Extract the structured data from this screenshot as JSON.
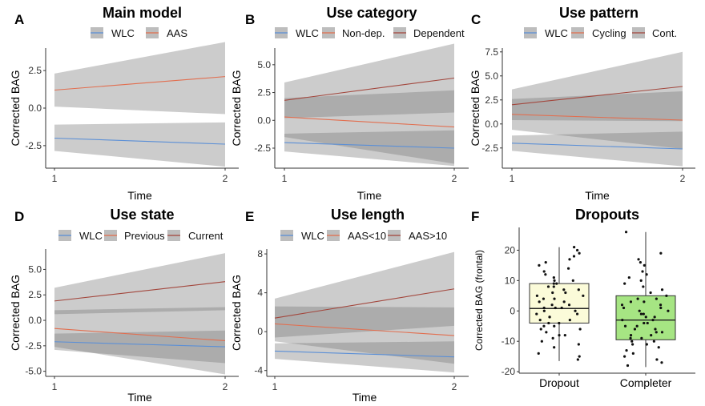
{
  "chart_data": [
    {
      "panel": "A",
      "type": "line",
      "title": "Main model",
      "xlabel": "Time",
      "ylabel": "Corrected BAG",
      "x": [
        1,
        2
      ],
      "xticks": [
        "1",
        "2"
      ],
      "yticks": [
        -2.5,
        0.0,
        2.5
      ],
      "ytick_labels": [
        "-2.5",
        "0.0",
        "2.5"
      ],
      "ylim": [
        -4.0,
        4.0
      ],
      "series": [
        {
          "name": "WLC",
          "color": "#5b8fd6",
          "values": [
            -2.0,
            -2.4
          ],
          "lower": [
            -2.85,
            -3.9
          ],
          "upper": [
            -1.1,
            -0.95
          ]
        },
        {
          "name": "AAS",
          "color": "#e26e4f",
          "values": [
            1.2,
            2.1
          ],
          "lower": [
            0.1,
            -0.4
          ],
          "upper": [
            2.3,
            4.4
          ]
        }
      ]
    },
    {
      "panel": "B",
      "type": "line",
      "title": "Use category",
      "xlabel": "Time",
      "ylabel": "Corrected BAG",
      "x": [
        1,
        2
      ],
      "xticks": [
        "1",
        "2"
      ],
      "yticks": [
        -2.5,
        0.0,
        2.5,
        5.0
      ],
      "ytick_labels": [
        "-2.5",
        "0.0",
        "2.5",
        "5.0"
      ],
      "ylim": [
        -4.3,
        6.5
      ],
      "series": [
        {
          "name": "WLC",
          "color": "#5b8fd6",
          "values": [
            -2.0,
            -2.5
          ],
          "lower": [
            -2.8,
            -4.1
          ],
          "upper": [
            -1.2,
            -0.9
          ]
        },
        {
          "name": "Non-dep.",
          "color": "#e26e4f",
          "values": [
            0.3,
            -0.6
          ],
          "lower": [
            -1.5,
            -3.9
          ],
          "upper": [
            2.0,
            2.7
          ]
        },
        {
          "name": "Dependent",
          "color": "#a3473d",
          "values": [
            1.8,
            3.8
          ],
          "lower": [
            0.2,
            0.7
          ],
          "upper": [
            3.4,
            6.9
          ]
        }
      ]
    },
    {
      "panel": "C",
      "type": "line",
      "title": "Use pattern",
      "xlabel": "Time",
      "ylabel": "Corrected BAG",
      "x": [
        1,
        2
      ],
      "xticks": [
        "1",
        "2"
      ],
      "yticks": [
        -2.5,
        0.0,
        2.5,
        5.0,
        7.5
      ],
      "ytick_labels": [
        "-2.5",
        "0.0",
        "2.5",
        "5.0",
        "7.5"
      ],
      "ylim": [
        -4.6,
        7.9
      ],
      "series": [
        {
          "name": "WLC",
          "color": "#5b8fd6",
          "values": [
            -2.0,
            -2.6
          ],
          "lower": [
            -2.8,
            -4.4
          ],
          "upper": [
            -1.2,
            -0.8
          ]
        },
        {
          "name": "Cycling",
          "color": "#e26e4f",
          "values": [
            1.0,
            0.4
          ],
          "lower": [
            -0.6,
            -2.6
          ],
          "upper": [
            2.6,
            3.4
          ]
        },
        {
          "name": "Cont.",
          "color": "#a3473d",
          "values": [
            2.0,
            3.9
          ],
          "lower": [
            0.4,
            0.3
          ],
          "upper": [
            3.6,
            7.5
          ]
        }
      ]
    },
    {
      "panel": "D",
      "type": "line",
      "title": "Use state",
      "xlabel": "Time",
      "ylabel": "Corrected BAG",
      "x": [
        1,
        2
      ],
      "xticks": [
        "1",
        "2"
      ],
      "yticks": [
        -5.0,
        -2.5,
        0.0,
        2.5,
        5.0
      ],
      "ytick_labels": [
        "-5.0",
        "-2.5",
        "0.0",
        "2.5",
        "5.0"
      ],
      "ylim": [
        -5.5,
        7.0
      ],
      "series": [
        {
          "name": "WLC",
          "color": "#5b8fd6",
          "values": [
            -2.1,
            -2.6
          ],
          "lower": [
            -2.9,
            -4.2
          ],
          "upper": [
            -1.3,
            -1.0
          ]
        },
        {
          "name": "Previous",
          "color": "#e26e4f",
          "values": [
            -0.8,
            -2.0
          ],
          "lower": [
            -2.6,
            -5.3
          ],
          "upper": [
            1.0,
            1.3
          ]
        },
        {
          "name": "Current",
          "color": "#a3473d",
          "values": [
            1.9,
            3.8
          ],
          "lower": [
            0.6,
            1.0
          ],
          "upper": [
            3.2,
            6.6
          ]
        }
      ]
    },
    {
      "panel": "E",
      "type": "line",
      "title": "Use length",
      "xlabel": "Time",
      "ylabel": "Corrected BAG",
      "x": [
        1,
        2
      ],
      "xticks": [
        "1",
        "2"
      ],
      "yticks": [
        -4,
        0,
        4,
        8
      ],
      "ytick_labels": [
        "-4",
        "0",
        "4",
        "8"
      ],
      "ylim": [
        -4.6,
        8.5
      ],
      "series": [
        {
          "name": "WLC",
          "color": "#5b8fd6",
          "values": [
            -2.0,
            -2.6
          ],
          "lower": [
            -2.8,
            -4.2
          ],
          "upper": [
            -1.2,
            -1.0
          ]
        },
        {
          "name": "AAS<10",
          "color": "#e26e4f",
          "values": [
            0.8,
            -0.4
          ],
          "lower": [
            -1.0,
            -3.3
          ],
          "upper": [
            2.6,
            2.5
          ]
        },
        {
          "name": "AAS>10",
          "color": "#a3473d",
          "values": [
            1.4,
            4.4
          ],
          "lower": [
            -0.6,
            0.6
          ],
          "upper": [
            3.4,
            8.2
          ]
        }
      ]
    },
    {
      "panel": "F",
      "type": "box",
      "title": "Dropouts",
      "xlabel": "",
      "ylabel": "Corrected BAG (frontal)",
      "categories": [
        "Dropout",
        "Completer"
      ],
      "yticks": [
        -20,
        -10,
        0,
        10,
        20
      ],
      "ytick_labels": [
        "-20",
        "-10",
        "0",
        "10",
        "20"
      ],
      "ylim": [
        -20.5,
        27.5
      ],
      "boxes": [
        {
          "name": "Dropout",
          "fill": "#fbfbd9",
          "q1": -4,
          "median": 0.8,
          "q3": 9,
          "whisker_low": -16.5,
          "whisker_high": 21
        },
        {
          "name": "Completer",
          "fill": "#a6e583",
          "q1": -9.5,
          "median": -3,
          "q3": 5,
          "whisker_low": -18.5,
          "whisker_high": 26
        }
      ],
      "points": {
        "Dropout": [
          -16,
          -15,
          -14,
          -12,
          -11,
          -10,
          -9,
          -8,
          -8,
          -7,
          -6,
          -6,
          -5,
          -5,
          -4,
          -4,
          -3,
          -3,
          -2,
          -2,
          -1,
          -1,
          0,
          0,
          1,
          1,
          1,
          2,
          2,
          3,
          3,
          4,
          4,
          5,
          5,
          6,
          6,
          7,
          7,
          8,
          8,
          9,
          9,
          10,
          10,
          11,
          12,
          13,
          14,
          15,
          16,
          17,
          18,
          19,
          20,
          21
        ],
        "Completer": [
          -18,
          -17,
          -16,
          -15,
          -14,
          -13,
          -12,
          -11,
          -11,
          -10,
          -10,
          -9,
          -9,
          -8,
          -8,
          -7,
          -7,
          -6,
          -6,
          -5,
          -5,
          -4,
          -4,
          -3,
          -3,
          -2,
          -2,
          -1,
          -1,
          0,
          0,
          1,
          1,
          2,
          2,
          3,
          3,
          4,
          4,
          5,
          6,
          7,
          8,
          9,
          10,
          11,
          12,
          13,
          15,
          16,
          17,
          19,
          26
        ]
      }
    }
  ]
}
